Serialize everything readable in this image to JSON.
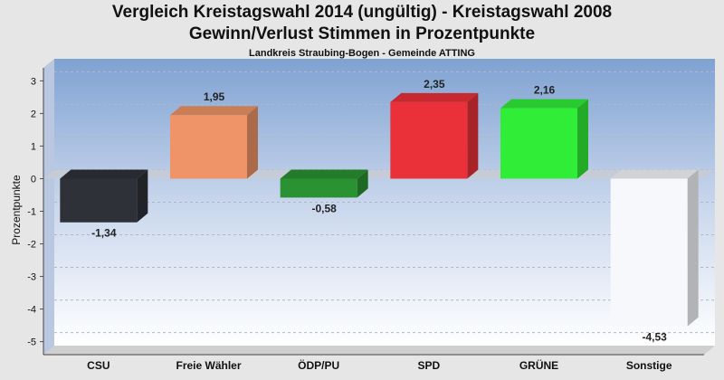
{
  "title": "Vergleich Kreistagswahl 2014 (ungültig) - Kreistagswahl 2008",
  "subtitle": "Gewinn/Verlust Stimmen in Prozentpunkte",
  "subsubtitle": "Landkreis Straubing-Bogen - Gemeinde ATTING",
  "chart_data": {
    "type": "bar",
    "title": "Vergleich Kreistagswahl 2014 (ungültig) - Kreistagswahl 2008",
    "subtitle": "Gewinn/Verlust Stimmen in Prozentpunkte",
    "ylabel": "Prozentpunkte",
    "xlabel": "",
    "ylim": [
      -5.4,
      3.4
    ],
    "yticks": [
      3,
      2,
      1,
      0,
      -1,
      -2,
      -3,
      -4,
      -5
    ],
    "grid": true,
    "categories": [
      "CSU",
      "Freie Wähler",
      "ÖDP/PU",
      "SPD",
      "GRÜNE",
      "Sonstige"
    ],
    "values": [
      -1.34,
      1.95,
      -0.58,
      2.35,
      2.16,
      -4.53
    ],
    "value_labels": [
      "-1,34",
      "1,95",
      "-0,58",
      "2,35",
      "2,16",
      "-4,53"
    ],
    "colors": [
      "#2e3138",
      "#ee9468",
      "#2a9232",
      "#ea3038",
      "#30ee38",
      "#f6f8fc"
    ]
  }
}
